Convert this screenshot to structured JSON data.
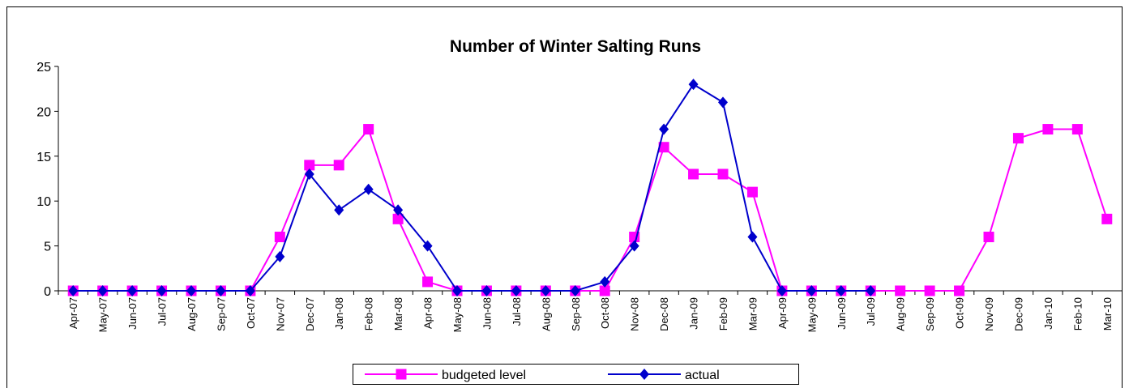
{
  "chart_data": {
    "type": "line",
    "title": "Number of Winter Salting Runs",
    "categories": [
      "Apr-07",
      "May-07",
      "Jun-07",
      "Jul-07",
      "Aug-07",
      "Sep-07",
      "Oct-07",
      "Nov-07",
      "Dec-07",
      "Jan-08",
      "Feb-08",
      "Mar-08",
      "Apr-08",
      "May-08",
      "Jun-08",
      "Jul-08",
      "Aug-08",
      "Sep-08",
      "Oct-08",
      "Nov-08",
      "Dec-08",
      "Jan-09",
      "Feb-09",
      "Mar-09",
      "Apr-09",
      "May-09",
      "Jun-09",
      "Jul-09",
      "Aug-09",
      "Sep-09",
      "Oct-09",
      "Nov-09",
      "Dec-09",
      "Jan-10",
      "Feb-10",
      "Mar-10"
    ],
    "series": [
      {
        "name": "budgeted level",
        "color": "#ff00ff",
        "marker": "square",
        "values": [
          0,
          0,
          0,
          0,
          0,
          0,
          0,
          6,
          14,
          14,
          18,
          8,
          1,
          0,
          0,
          0,
          0,
          0,
          0,
          6,
          16,
          13,
          13,
          11,
          0,
          0,
          0,
          0,
          0,
          0,
          0,
          6,
          17,
          18,
          18,
          8
        ]
      },
      {
        "name": "actual",
        "color": "#0000cc",
        "marker": "diamond",
        "values": [
          0,
          0,
          0,
          0,
          0,
          0,
          0,
          3.8,
          13,
          9,
          11.3,
          9,
          5,
          0,
          0,
          0,
          0,
          0,
          1,
          5,
          18,
          23,
          21,
          6,
          0,
          0,
          0,
          0,
          null,
          null,
          null,
          null,
          null,
          null,
          null,
          null
        ]
      }
    ],
    "ylim": [
      0,
      25
    ],
    "yticks": [
      0,
      5,
      10,
      15,
      20,
      25
    ],
    "grid": false,
    "legend": "bottom"
  }
}
